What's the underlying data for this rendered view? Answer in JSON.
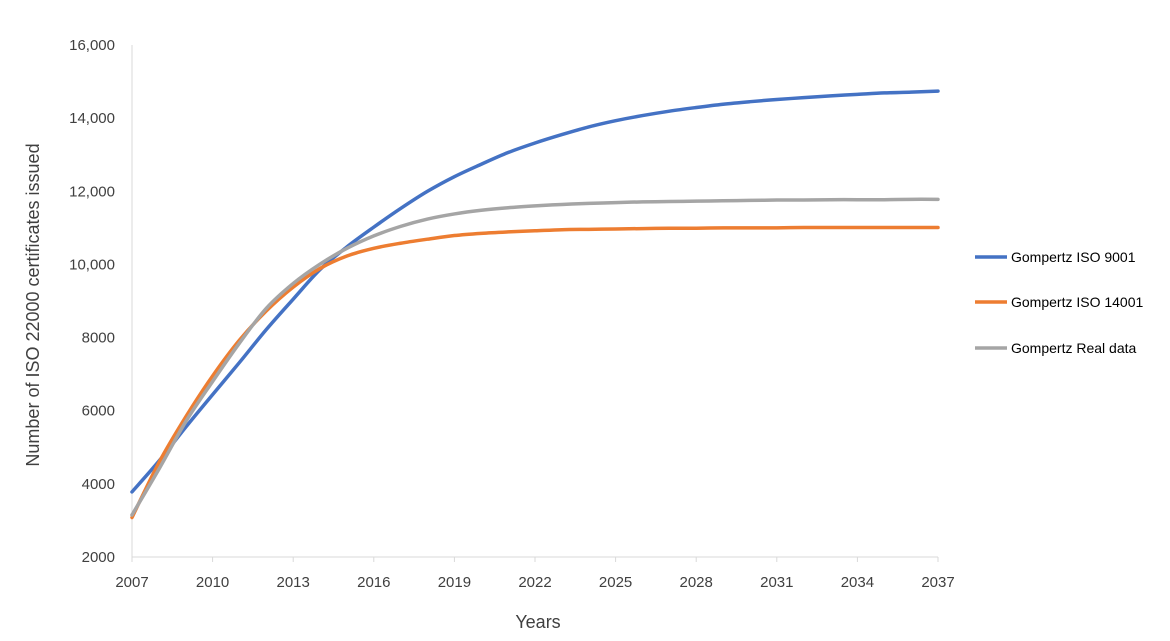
{
  "chart_data": {
    "type": "line",
    "title": "",
    "xlabel": "Years",
    "ylabel": "Number of ISO 22000 certificates issued",
    "xlim": [
      2007,
      2037
    ],
    "ylim": [
      2000,
      16000
    ],
    "x_ticks": [
      2007,
      2010,
      2013,
      2016,
      2019,
      2022,
      2025,
      2028,
      2031,
      2034,
      2037
    ],
    "x_tick_labels": [
      "2007",
      "2010",
      "2013",
      "2016",
      "2019",
      "2022",
      "2025",
      "2028",
      "2031",
      "2034",
      "2037"
    ],
    "y_ticks": [
      2000,
      4000,
      6000,
      8000,
      10000,
      12000,
      14000,
      16000
    ],
    "y_tick_labels": [
      "2000",
      "4000",
      "6000",
      "8000",
      "10,000",
      "12,000",
      "14,000",
      "16,000"
    ],
    "grid": false,
    "legend_position": "right",
    "x": [
      2007,
      2008,
      2009,
      2010,
      2011,
      2012,
      2013,
      2014,
      2015,
      2016,
      2017,
      2018,
      2019,
      2020,
      2021,
      2022,
      2023,
      2024,
      2025,
      2026,
      2027,
      2028,
      2029,
      2030,
      2031,
      2032,
      2033,
      2034,
      2035,
      2036,
      2037
    ],
    "series": [
      {
        "name": "Gompertz ISO 9001",
        "color": "#4472C4",
        "values": [
          3780,
          4620,
          5550,
          6440,
          7320,
          8220,
          9050,
          9860,
          10480,
          11020,
          11530,
          12000,
          12400,
          12740,
          13060,
          13320,
          13550,
          13760,
          13930,
          14070,
          14190,
          14290,
          14380,
          14450,
          14510,
          14560,
          14610,
          14650,
          14690,
          14710,
          14740
        ]
      },
      {
        "name": "Gompertz ISO 14001",
        "color": "#ED7D31",
        "values": [
          3080,
          4580,
          5830,
          6950,
          7930,
          8730,
          9380,
          9890,
          10230,
          10440,
          10580,
          10690,
          10790,
          10850,
          10890,
          10920,
          10950,
          10960,
          10970,
          10980,
          10990,
          10990,
          11000,
          11000,
          11000,
          11010,
          11010,
          11010,
          11010,
          11010,
          11010
        ]
      },
      {
        "name": "Gompertz Real data",
        "color": "#A5A5A5",
        "values": [
          3150,
          4400,
          5700,
          6800,
          7850,
          8800,
          9480,
          10010,
          10440,
          10780,
          11040,
          11240,
          11380,
          11480,
          11550,
          11600,
          11640,
          11670,
          11690,
          11710,
          11720,
          11730,
          11740,
          11750,
          11760,
          11760,
          11770,
          11770,
          11770,
          11780,
          11780
        ]
      }
    ]
  }
}
